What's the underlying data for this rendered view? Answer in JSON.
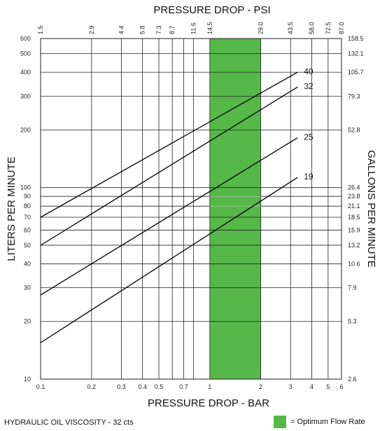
{
  "chart_data": {
    "type": "line",
    "title_top": "PRESSURE DROP - PSI",
    "xlabel": "PRESSURE DROP - BAR",
    "ylabel_left": "LITERS PER MINUTE",
    "ylabel_right": "GALLONS PER MINUTE",
    "x_scale": "log",
    "y_scale": "log",
    "xlim": [
      0.1,
      6
    ],
    "ylim": [
      10,
      600
    ],
    "x_ticks": [
      "0.1",
      "0.2",
      "0.3",
      "0.4",
      "0.5",
      "0.7",
      "1",
      "2",
      "3",
      "4",
      "5",
      "6"
    ],
    "x_tick_values": [
      0.1,
      0.2,
      0.3,
      0.4,
      0.5,
      0.7,
      1,
      2,
      3,
      4,
      5,
      6
    ],
    "x_top_ticks": [
      "1.5",
      "2.9",
      "4.4",
      "5.8",
      "7.3",
      "8.7",
      "11.6",
      "14.5",
      "29.0",
      "43.5",
      "58.0",
      "72.5",
      "87.0"
    ],
    "x_top_tick_values": [
      0.1,
      0.2,
      0.3,
      0.4,
      0.5,
      0.6,
      0.8,
      1,
      2,
      3,
      4,
      5,
      6
    ],
    "x_gridlines": [
      0.1,
      0.2,
      0.3,
      0.4,
      0.5,
      0.6,
      0.7,
      0.8,
      1,
      2,
      3,
      4,
      5,
      6
    ],
    "y_ticks": [
      "10",
      "20",
      "30",
      "40",
      "50",
      "60",
      "70",
      "80",
      "90",
      "100",
      "200",
      "300",
      "400",
      "500",
      "600"
    ],
    "y_tick_values": [
      10,
      20,
      30,
      40,
      50,
      60,
      70,
      80,
      90,
      100,
      200,
      300,
      400,
      500,
      600
    ],
    "y_right_ticks": [
      "2.6",
      "5.3",
      "7.9",
      "10.6",
      "13.2",
      "15.9",
      "18.5",
      "21.1",
      "23.8",
      "26.4",
      "52.8",
      "79.3",
      "105.7",
      "132.1",
      "158.5"
    ],
    "optimum_band": {
      "x": [
        1,
        2
      ],
      "color": "#55b848",
      "legend": "= Optimum Flow Rate"
    },
    "series": [
      {
        "name": "40",
        "x": [
          0.1,
          3.3
        ],
        "y": [
          70,
          400
        ]
      },
      {
        "name": "32",
        "x": [
          0.1,
          3.3
        ],
        "y": [
          50,
          335
        ]
      },
      {
        "name": "25",
        "x": [
          0.1,
          3.3
        ],
        "y": [
          27.5,
          182
        ]
      },
      {
        "name": "19",
        "x": [
          0.1,
          3.3
        ],
        "y": [
          15.5,
          113
        ]
      }
    ],
    "footer_note": "HYDRAULIC OIL VISCOSITY - 32 cts",
    "grid": true
  }
}
